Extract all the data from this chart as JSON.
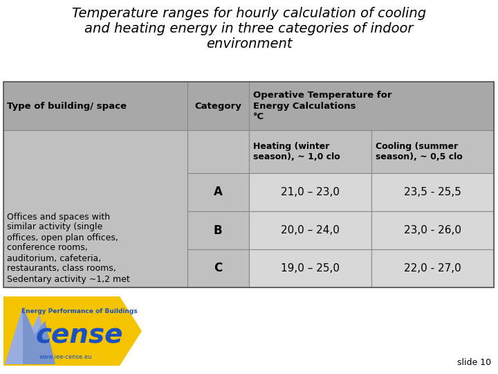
{
  "title": "Temperature ranges for hourly calculation of cooling\nand heating energy in three categories of indoor\nenvironment",
  "title_fontsize": 14,
  "background_color": "#ffffff",
  "table_bg_dark": "#a8a8a8",
  "table_bg_light": "#c0c0c0",
  "table_bg_lighter": "#d8d8d8",
  "col_header0": "Type of building/ space",
  "col_header1": "Category",
  "col_header2": "Operative Temperature for\nEnergy Calculations\n°C",
  "sub_header_heating": "Heating (winter\nseason), ~ 1,0 clo",
  "sub_header_cooling": "Cooling (summer\nseason), ~ 0,5 clo",
  "categories": [
    "A",
    "B",
    "C"
  ],
  "heating": [
    "21,0 – 23,0",
    "20,0 – 24,0",
    "19,0 – 25,0"
  ],
  "cooling": [
    "23,5 - 25,5",
    "23,0 - 26,0",
    "22,0 - 27,0"
  ],
  "building_text": "Offices and spaces with\nsimilar activity (single\noffices, open plan offices,\nconference rooms,\nauditorium, cafeteria,\nrestaurants, class rooms,\nSedentary activity ~1,2 met",
  "slide_text": "slide 10",
  "logo_text": "cense",
  "logo_sub": "Energy Performance of Buildings",
  "logo_url": "www.iee-cense.eu"
}
